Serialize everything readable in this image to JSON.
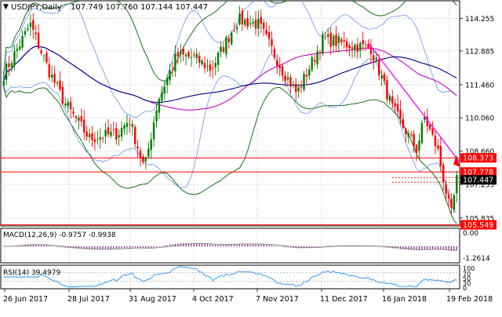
{
  "header": {
    "symbol": "USDJPY,Daily",
    "ohlc": "107.749 107.760 107.144 107.447"
  },
  "price_axis": {
    "labels": [
      "114.255",
      "112.885",
      "111.460",
      "110.060",
      "108.660",
      "107.255",
      "105.835"
    ]
  },
  "price_tags": [
    {
      "value": "108.373",
      "bg": "#ff0000",
      "fg": "#ffffff"
    },
    {
      "value": "107.778",
      "bg": "#ff0000",
      "fg": "#ffffff"
    },
    {
      "value": "107.447",
      "bg": "#000000",
      "fg": "#ffffff"
    },
    {
      "value": "105.549",
      "bg": "#ff0000",
      "fg": "#ffffff"
    }
  ],
  "macd": {
    "label": "MACD(12,26,9) -0.9757 -0.9938",
    "axis": [
      "0.00",
      "-1.2614"
    ]
  },
  "rsi": {
    "label": "RSI(14) 39.4979",
    "axis": [
      "100",
      "70",
      "50",
      "30",
      "0"
    ]
  },
  "time_axis": {
    "labels": [
      "26 Jun 2017",
      "28 Jul 2017",
      "31 Aug 2017",
      "4 Oct 2017",
      "7 Nov 2017",
      "11 Dec 2017",
      "16 Jan 2018",
      "19 Feb 2018"
    ]
  },
  "colors": {
    "bull": "#008000",
    "bear": "#ff0000",
    "bb_outer": "#006400",
    "bb_inner": "#6495ed",
    "ma_long": "#00008b",
    "ma_mid": "#cc00cc",
    "trendline": "#ff00ff",
    "hline": "#ff0000",
    "macd_hist": "#800080",
    "rsi_line": "#1e90ff"
  },
  "chart_data": {
    "type": "candlestick",
    "x_range": [
      "26 Jun 2017",
      "19 Feb 2018"
    ],
    "ylim": [
      105.5,
      115.0
    ],
    "price_levels": [
      108.373,
      107.778,
      105.549
    ],
    "last_price": 107.447,
    "close_path": [
      {
        "date": "26 Jun 2017",
        "value": 111.9
      },
      {
        "date": "10 Jul 2017",
        "value": 114.0
      },
      {
        "date": "20 Jul 2017",
        "value": 112.0
      },
      {
        "date": "28 Jul 2017",
        "value": 110.7
      },
      {
        "date": "10 Aug 2017",
        "value": 109.2
      },
      {
        "date": "25 Aug 2017",
        "value": 109.4
      },
      {
        "date": "31 Aug 2017",
        "value": 110.0
      },
      {
        "date": "8 Sep 2017",
        "value": 107.9
      },
      {
        "date": "15 Sep 2017",
        "value": 110.8
      },
      {
        "date": "25 Sep 2017",
        "value": 112.7
      },
      {
        "date": "4 Oct 2017",
        "value": 112.6
      },
      {
        "date": "13 Oct 2017",
        "value": 112.1
      },
      {
        "date": "27 Oct 2017",
        "value": 114.2
      },
      {
        "date": "7 Nov 2017",
        "value": 114.0
      },
      {
        "date": "20 Nov 2017",
        "value": 112.0
      },
      {
        "date": "27 Nov 2017",
        "value": 111.1
      },
      {
        "date": "11 Dec 2017",
        "value": 113.4
      },
      {
        "date": "21 Dec 2017",
        "value": 113.2
      },
      {
        "date": "5 Jan 2018",
        "value": 113.0
      },
      {
        "date": "16 Jan 2018",
        "value": 110.5
      },
      {
        "date": "29 Jan 2018",
        "value": 108.7
      },
      {
        "date": "2 Feb 2018",
        "value": 110.1
      },
      {
        "date": "9 Feb 2018",
        "value": 108.7
      },
      {
        "date": "16 Feb 2018",
        "value": 105.9
      },
      {
        "date": "19 Feb 2018",
        "value": 107.45
      }
    ]
  }
}
